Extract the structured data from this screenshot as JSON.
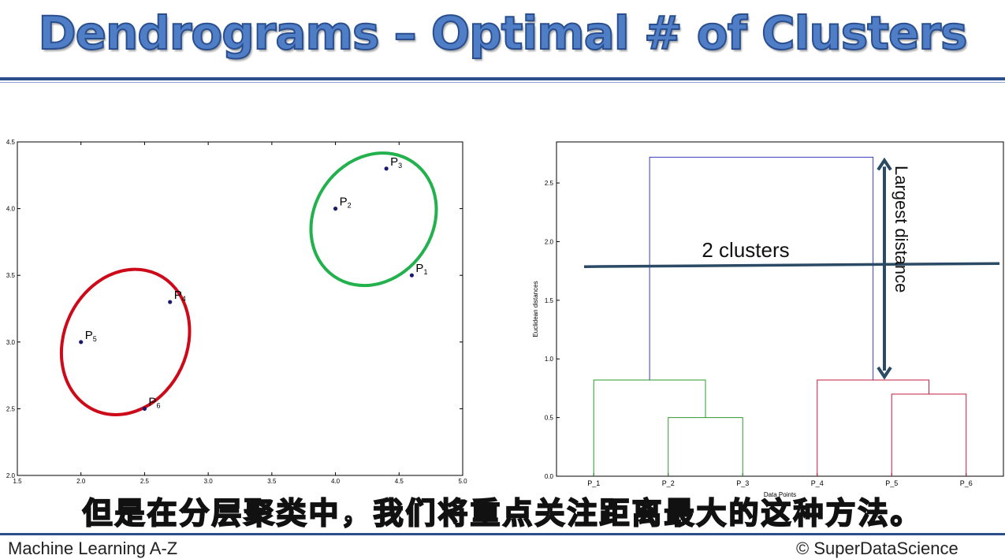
{
  "slide": {
    "title": "Dendrograms – Optimal # of Clusters",
    "subtitle": "但是在分层聚类中，我们将重点关注距离最大的这种方法。",
    "footer_left": "Machine Learning A-Z",
    "footer_right": "© SuperDataScience",
    "colors": {
      "title": "#4f7dc6",
      "rule": "#2c4f8c"
    }
  },
  "chart_data": [
    {
      "type": "scatter",
      "xlim": [
        1.5,
        5.0
      ],
      "ylim": [
        2.0,
        4.5
      ],
      "xticks": [
        "1.5",
        "2.0",
        "2.5",
        "3.0",
        "3.5",
        "4.0",
        "4.5",
        "5.0"
      ],
      "yticks": [
        "2.0",
        "2.5",
        "3.0",
        "3.5",
        "4.0",
        "4.5"
      ],
      "points": [
        {
          "label": "P",
          "sub": "1",
          "x": 4.6,
          "y": 3.5
        },
        {
          "label": "P",
          "sub": "2",
          "x": 4.0,
          "y": 4.0
        },
        {
          "label": "P",
          "sub": "3",
          "x": 4.4,
          "y": 4.3
        },
        {
          "label": "P",
          "sub": "4",
          "x": 2.7,
          "y": 3.3
        },
        {
          "label": "P",
          "sub": "5",
          "x": 2.0,
          "y": 3.0
        },
        {
          "label": "P",
          "sub": "6",
          "x": 2.5,
          "y": 2.5
        }
      ],
      "clusters": [
        {
          "color": "#22b14c",
          "members": [
            "P1",
            "P2",
            "P3"
          ]
        },
        {
          "color": "#cc0a1a",
          "members": [
            "P4",
            "P5",
            "P6"
          ]
        }
      ]
    },
    {
      "type": "dendrogram",
      "ylabel": "Euclidean distances",
      "xlabel": "Data Points",
      "ylim": [
        0,
        2.85
      ],
      "yticks": [
        "0.0",
        "0.5",
        "1.0",
        "1.5",
        "2.0",
        "2.5"
      ],
      "leaves": [
        "P_1",
        "P_2",
        "P_3",
        "P_4",
        "P_5",
        "P_6"
      ],
      "merges": [
        {
          "left": "P_2",
          "right": "P_3",
          "height": 0.5,
          "color": "#2e9a2e"
        },
        {
          "left": "P_1",
          "right": "P_2+P_3",
          "height": 0.82,
          "color": "#2e9a2e"
        },
        {
          "left": "P_5",
          "right": "P_6",
          "height": 0.7,
          "color": "#c41e3a"
        },
        {
          "left": "P_4",
          "right": "P_5+P_6",
          "height": 0.82,
          "color": "#c41e3a"
        },
        {
          "left": "cluster_1",
          "right": "cluster_2",
          "height": 2.72,
          "color": "#3b3bbf"
        }
      ],
      "annotations": {
        "cut_label": "2 clusters",
        "cut_height": 1.8,
        "arrow_label": "Largest distance",
        "arrow_range": [
          0.82,
          2.72
        ]
      }
    }
  ]
}
